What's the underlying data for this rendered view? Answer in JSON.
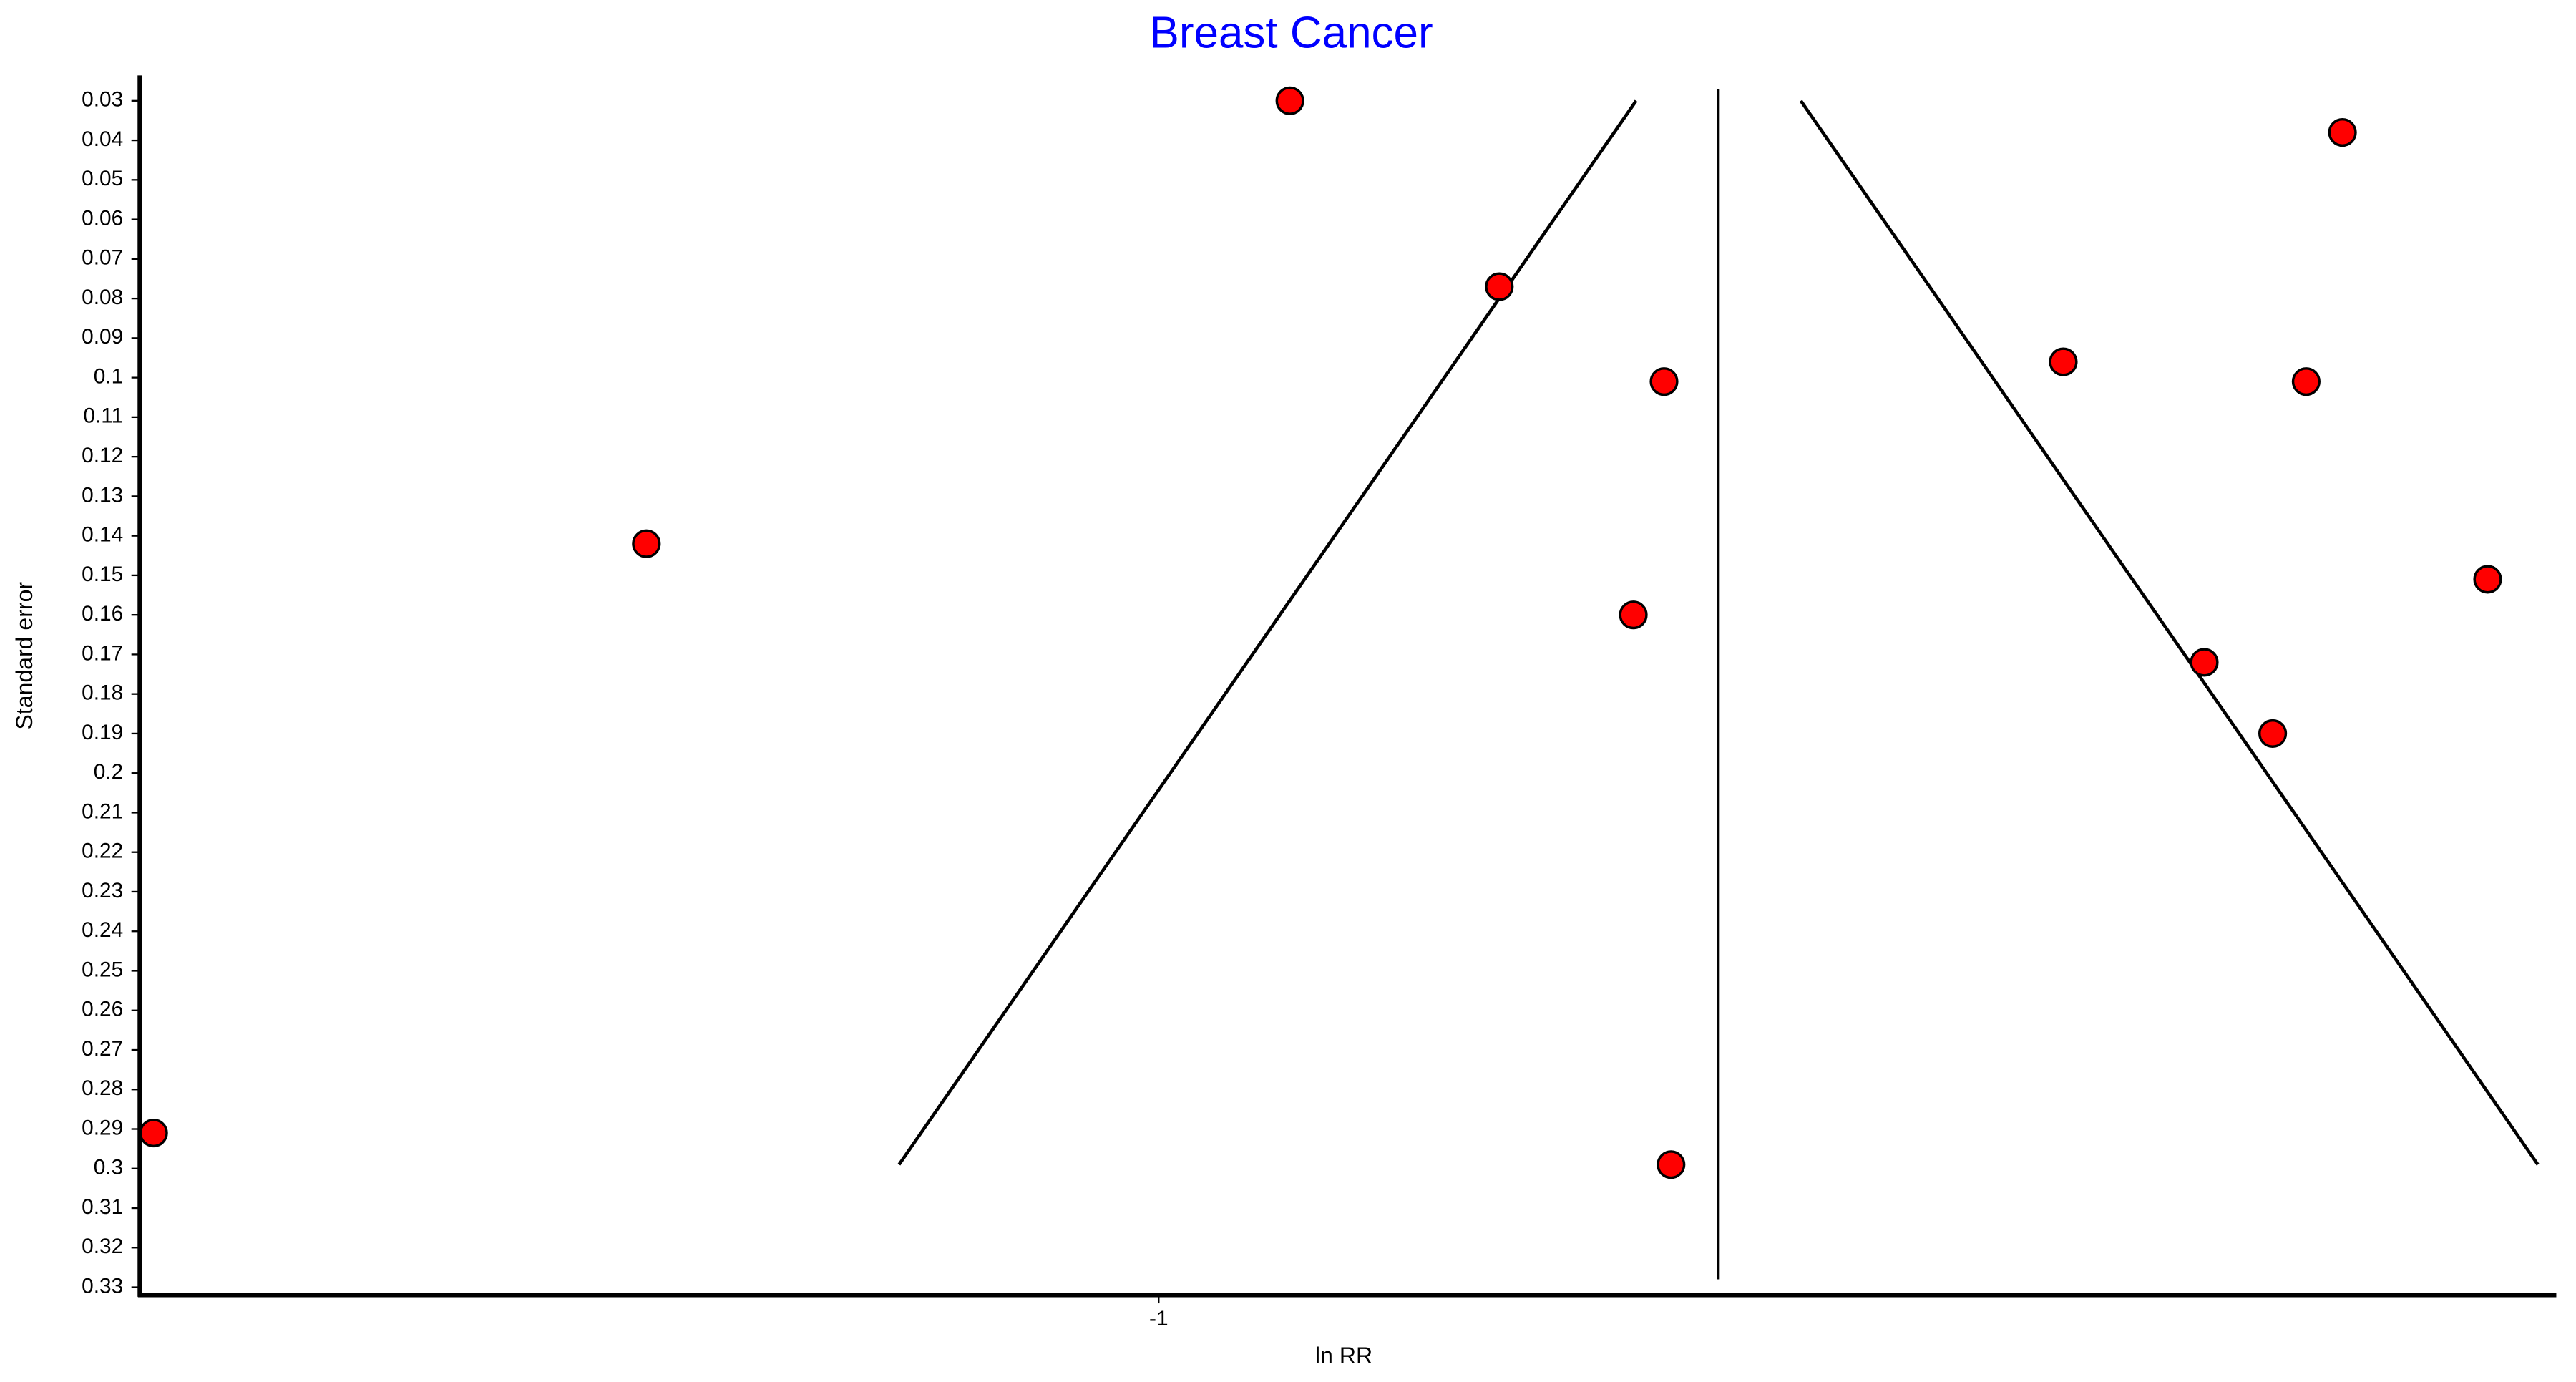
{
  "chart_data": {
    "type": "scatter",
    "title": "Breast Cancer",
    "x_label": "ln RR",
    "y_label": "Standard error",
    "xlim": [
      -1.73,
      0.0
    ],
    "ylim": [
      0.024,
      0.332
    ],
    "y_inverted": true,
    "xticks": [
      -1
    ],
    "yticks": [
      0.03,
      0.04,
      0.05,
      0.06,
      0.07,
      0.08,
      0.09,
      0.1,
      0.11,
      0.12,
      0.13,
      0.14,
      0.15,
      0.16,
      0.17,
      0.18,
      0.19,
      0.2,
      0.21,
      0.22,
      0.23,
      0.24,
      0.25,
      0.26,
      0.27,
      0.28,
      0.29,
      0.3,
      0.31,
      0.32,
      0.33
    ],
    "series": [
      {
        "color": "#ff0000",
        "x": [
          -0.906,
          -0.152,
          -0.756,
          -0.352,
          -0.638,
          -0.178,
          -1.367,
          -0.048,
          -0.66,
          -0.251,
          -0.202,
          -1.72,
          -0.633
        ],
        "values": [
          0.03,
          0.038,
          0.077,
          0.096,
          0.101,
          0.101,
          0.142,
          0.151,
          0.16,
          0.172,
          0.19,
          0.291,
          0.299
        ]
      }
    ],
    "mean_line": {
      "x": [
        -0.599,
        -0.599
      ],
      "y": [
        0.027,
        0.328
      ]
    },
    "funnel_left": {
      "x": [
        -0.658,
        -1.186
      ],
      "y": [
        0.03,
        0.299
      ]
    },
    "funnel_right": {
      "x": [
        -0.54,
        -0.012
      ],
      "y": [
        0.03,
        0.299
      ]
    }
  }
}
